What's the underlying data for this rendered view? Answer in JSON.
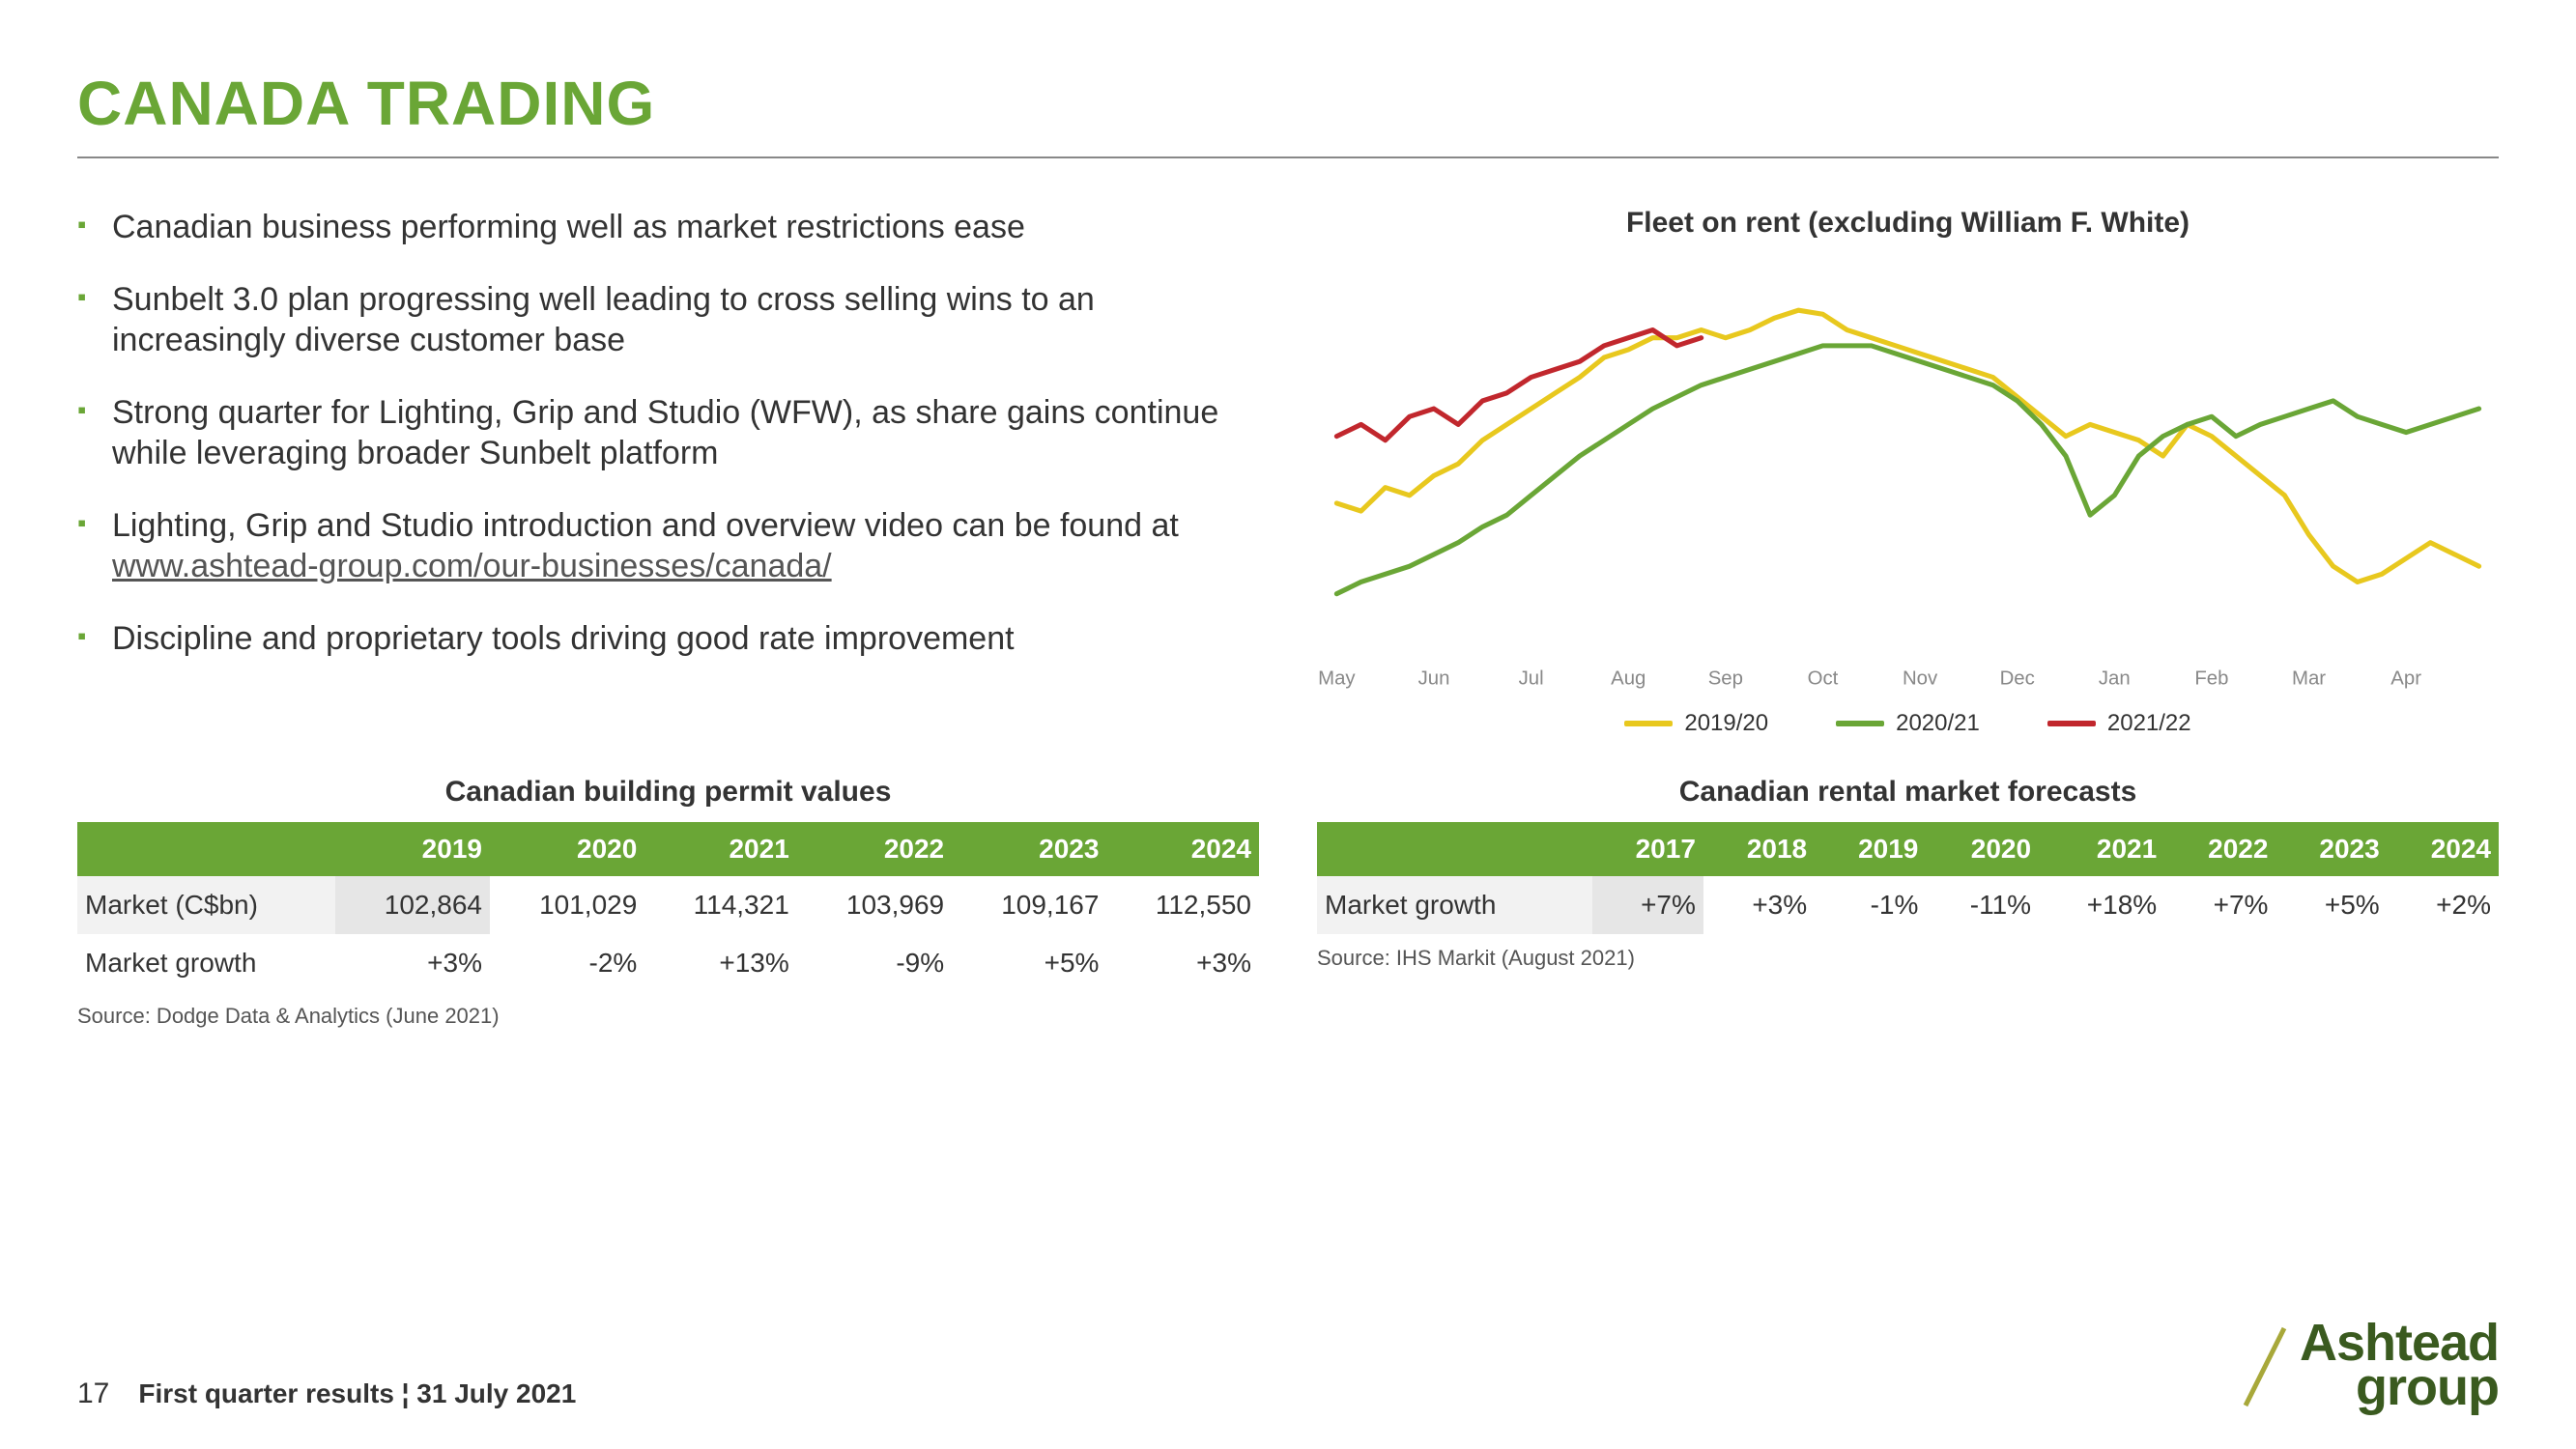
{
  "title": "CANADA TRADING",
  "bullets": [
    {
      "text": "Canadian business performing well as market restrictions ease"
    },
    {
      "text": "Sunbelt 3.0 plan progressing well leading to cross selling wins to an increasingly diverse customer base"
    },
    {
      "text": "Strong quarter for Lighting, Grip and Studio (WFW), as share gains continue while leveraging broader Sunbelt platform"
    },
    {
      "text_pre": "Lighting, Grip and Studio introduction and overview video can be found at ",
      "link": "www.ashtead-group.com/our-businesses/canada/"
    },
    {
      "text": "Discipline and proprietary tools driving good rate improvement"
    }
  ],
  "chart": {
    "title": "Fleet on rent (excluding William F. White)",
    "type": "line",
    "x_labels": [
      "May",
      "Jun",
      "Jul",
      "Aug",
      "Sep",
      "Oct",
      "Nov",
      "Dec",
      "Jan",
      "Feb",
      "Mar",
      "Apr"
    ],
    "ylim": [
      0,
      100
    ],
    "background_color": "#ffffff",
    "line_width": 5,
    "series": [
      {
        "name": "2019/20",
        "color": "#e8c81e",
        "points": [
          38,
          36,
          42,
          40,
          45,
          48,
          54,
          58,
          62,
          66,
          70,
          75,
          77,
          80,
          80,
          82,
          80,
          82,
          85,
          87,
          86,
          82,
          80,
          78,
          76,
          74,
          72,
          70,
          65,
          60,
          55,
          58,
          56,
          54,
          50,
          58,
          55,
          50,
          45,
          40,
          30,
          22,
          18,
          20,
          24,
          28,
          25,
          22
        ]
      },
      {
        "name": "2020/21",
        "color": "#6aa636",
        "points": [
          15,
          18,
          20,
          22,
          25,
          28,
          32,
          35,
          40,
          45,
          50,
          54,
          58,
          62,
          65,
          68,
          70,
          72,
          74,
          76,
          78,
          78,
          78,
          76,
          74,
          72,
          70,
          68,
          64,
          58,
          50,
          35,
          40,
          50,
          55,
          58,
          60,
          55,
          58,
          60,
          62,
          64,
          60,
          58,
          56,
          58,
          60,
          62
        ]
      },
      {
        "name": "2021/22",
        "color": "#c1272d",
        "points": [
          55,
          58,
          54,
          60,
          62,
          58,
          64,
          66,
          70,
          72,
          74,
          78,
          80,
          82,
          78,
          80
        ]
      }
    ]
  },
  "table_permits": {
    "title": "Canadian building permit values",
    "columns": [
      "",
      "2019",
      "2020",
      "2021",
      "2022",
      "2023",
      "2024"
    ],
    "rows": [
      [
        "Market (C$bn)",
        "102,864",
        "101,029",
        "114,321",
        "103,969",
        "109,167",
        "112,550"
      ],
      [
        "Market growth",
        "+3%",
        "-2%",
        "+13%",
        "-9%",
        "+5%",
        "+3%"
      ]
    ],
    "source": "Source: Dodge Data & Analytics (June 2021)",
    "header_bg": "#6aa636",
    "header_color": "#ffffff"
  },
  "table_rental": {
    "title": "Canadian rental market forecasts",
    "columns": [
      "",
      "2017",
      "2018",
      "2019",
      "2020",
      "2021",
      "2022",
      "2023",
      "2024"
    ],
    "rows": [
      [
        "Market growth",
        "+7%",
        "+3%",
        "-1%",
        "-11%",
        "+18%",
        "+7%",
        "+5%",
        "+2%"
      ]
    ],
    "source": "Source: IHS Markit (August 2021)",
    "header_bg": "#6aa636",
    "header_color": "#ffffff"
  },
  "footer": {
    "page": "17",
    "text": "First quarter results ¦ 31 July 2021",
    "logo_top": "Ashtead",
    "logo_bottom": "group",
    "logo_color": "#3a5a1f",
    "slash_color": "#a8a83a"
  }
}
